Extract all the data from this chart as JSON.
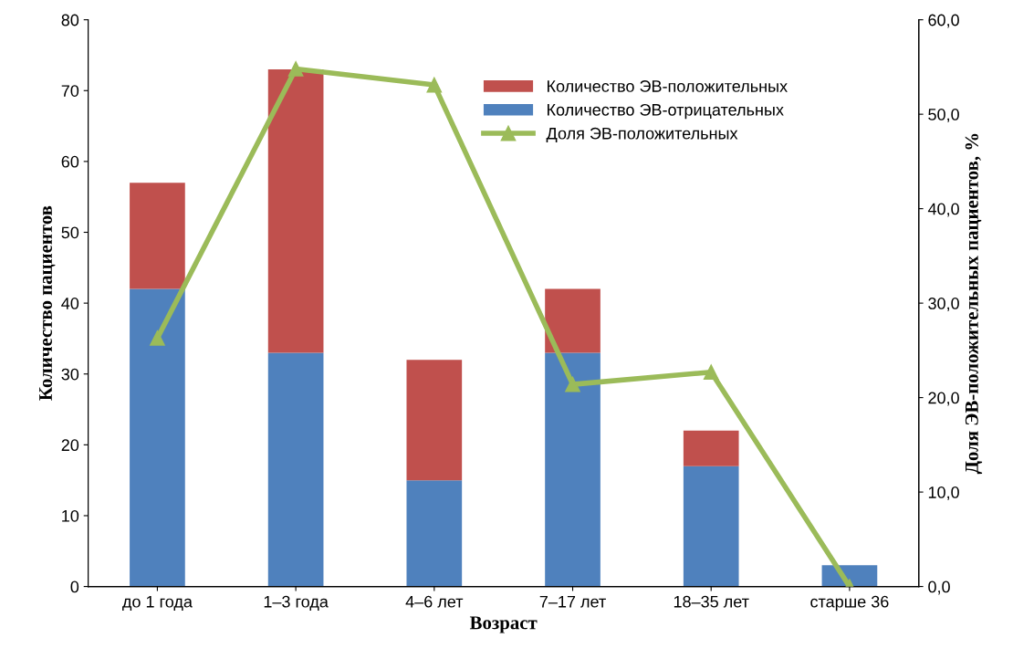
{
  "chart_data": {
    "type": "bar",
    "stacked": true,
    "xlabel": "Возраст",
    "ylabel": "Количество пациентов",
    "y2label": "Доля ЭВ-положительных пациентов, %",
    "categories": [
      "до 1 года",
      "1–3 года",
      "4–6 лет",
      "7–17 лет",
      "18–35 лет",
      "старше 36"
    ],
    "series": [
      {
        "name": "Количество ЭВ-отрицательных",
        "color": "#4f81bd",
        "values": [
          42,
          33,
          15,
          33,
          17,
          3
        ]
      },
      {
        "name": "Количество ЭВ-положительных",
        "color": "#c0504d",
        "values": [
          15,
          40,
          17,
          9,
          5,
          0
        ]
      },
      {
        "name": "Доля ЭВ-положительных",
        "type": "line",
        "axis": "y2",
        "color": "#9bbb59",
        "marker": "triangle",
        "values": [
          26.3,
          54.8,
          53.1,
          21.4,
          22.7,
          0.0
        ]
      }
    ],
    "ylim": [
      0,
      80
    ],
    "yticks": [
      0,
      10,
      20,
      30,
      40,
      50,
      60,
      70,
      80
    ],
    "y2lim": [
      0,
      60
    ],
    "y2ticks": [
      {
        "value": 0,
        "label": "0,0"
      },
      {
        "value": 10,
        "label": "10,0"
      },
      {
        "value": 20,
        "label": "20,0"
      },
      {
        "value": 30,
        "label": "30,0"
      },
      {
        "value": 40,
        "label": "40,0"
      },
      {
        "value": 50,
        "label": "50,0"
      },
      {
        "value": 60,
        "label": "60,0"
      }
    ],
    "grid": false,
    "legend": "top right"
  }
}
